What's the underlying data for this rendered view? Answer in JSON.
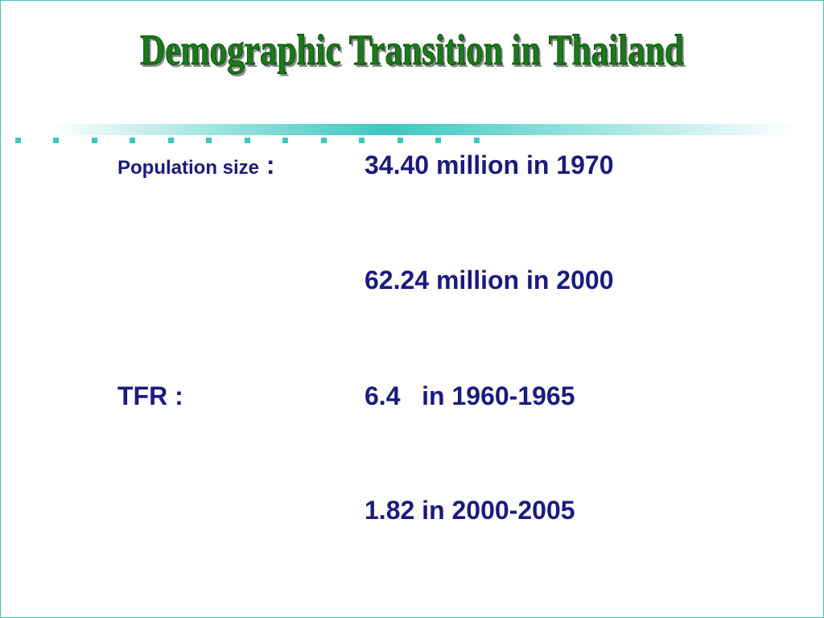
{
  "title": "Demographic Transition in Thailand",
  "items": [
    {
      "label": "Population size",
      "separator": ":",
      "lines": [
        "34.40 million in 1970",
        "62.24 million in 2000"
      ]
    },
    {
      "label": "TFR",
      "separator": ":",
      "lines": [
        "6.4   in 1960-1965",
        "1.82 in 2000-2005"
      ]
    }
  ]
}
